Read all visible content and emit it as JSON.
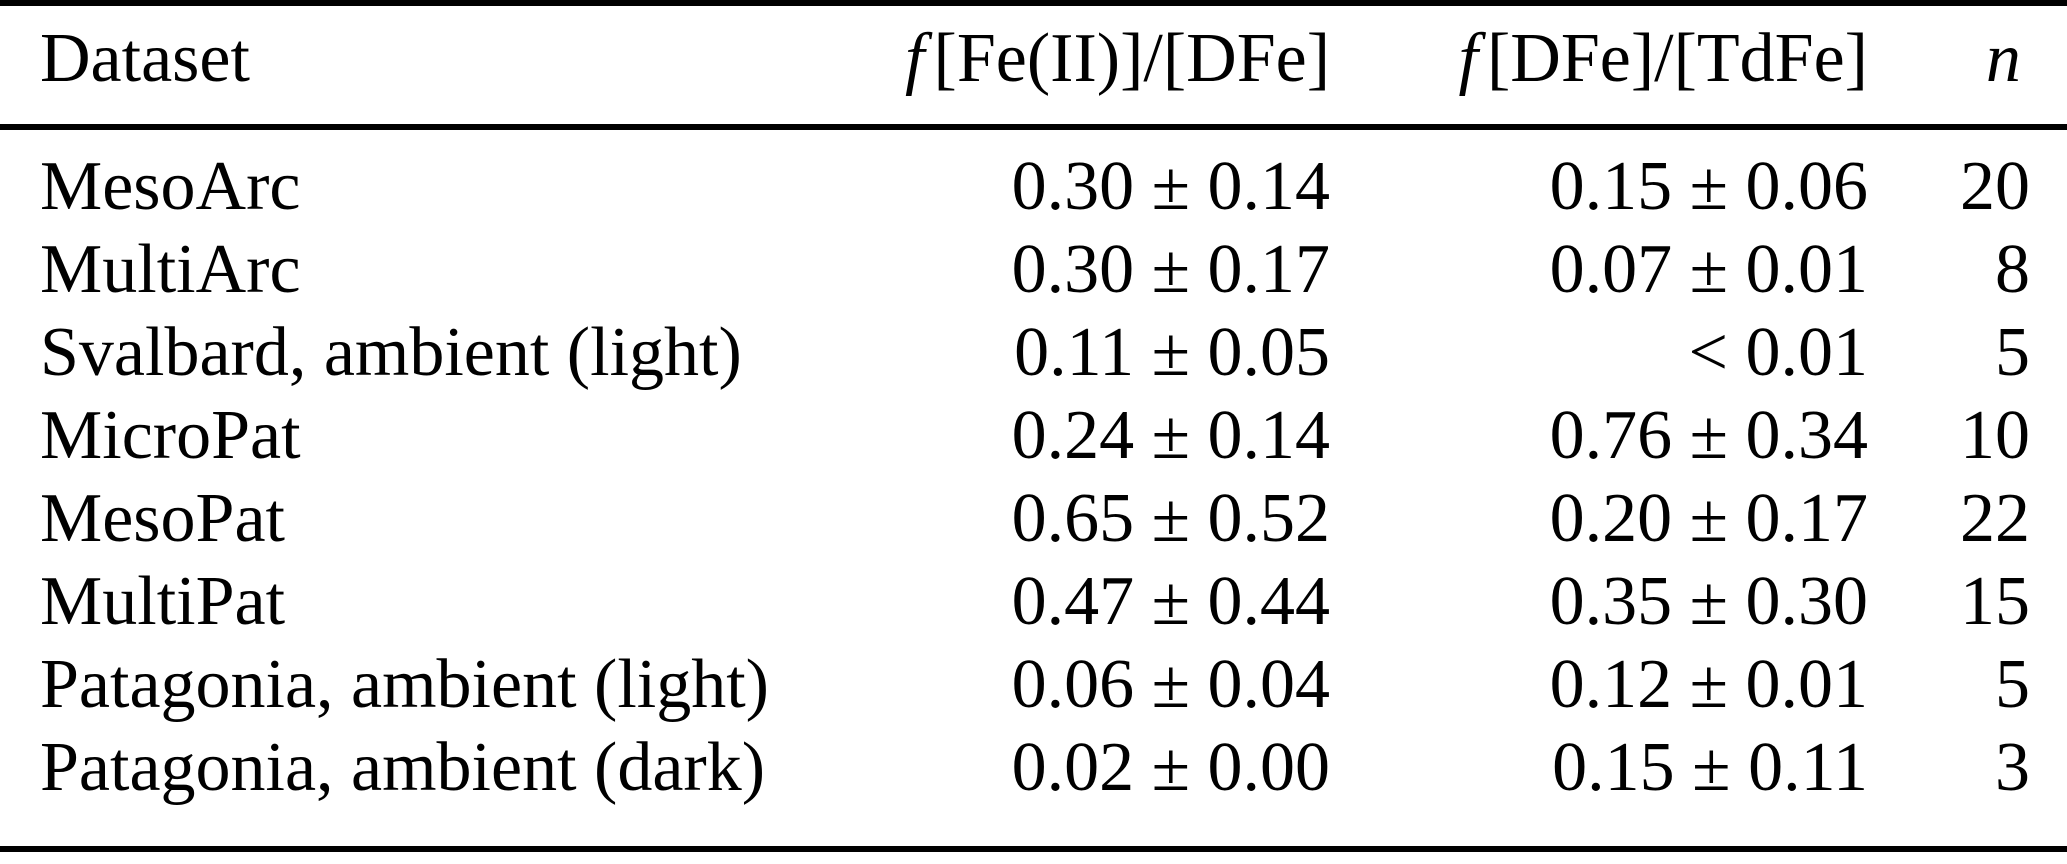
{
  "page": {
    "background_color": "#ffffff",
    "text_color": "#000000",
    "rule_color": "#000000"
  },
  "table": {
    "columns": {
      "dataset": {
        "prefix": "",
        "label": "Dataset"
      },
      "fe2_dfe": {
        "prefix": "f",
        "label": "[Fe(II)]/[DFe]"
      },
      "dfe_tdfe": {
        "prefix": "f",
        "label": "[DFe]/[TdFe]"
      },
      "n": {
        "prefix": "n",
        "label": ""
      }
    },
    "rows": [
      {
        "dataset": "MesoArc",
        "fe2_dfe": "0.30 ± 0.14",
        "dfe_tdfe": "0.15 ± 0.06",
        "n": "20"
      },
      {
        "dataset": "MultiArc",
        "fe2_dfe": "0.30 ± 0.17",
        "dfe_tdfe": "0.07 ± 0.01",
        "n": "8"
      },
      {
        "dataset": "Svalbard, ambient (light)",
        "fe2_dfe": "0.11 ± 0.05",
        "dfe_tdfe": "< 0.01",
        "n": "5"
      },
      {
        "dataset": "MicroPat",
        "fe2_dfe": "0.24 ± 0.14",
        "dfe_tdfe": "0.76 ± 0.34",
        "n": "10"
      },
      {
        "dataset": "MesoPat",
        "fe2_dfe": "0.65 ± 0.52",
        "dfe_tdfe": "0.20 ± 0.17",
        "n": "22"
      },
      {
        "dataset": "MultiPat",
        "fe2_dfe": "0.47 ± 0.44",
        "dfe_tdfe": "0.35 ± 0.30",
        "n": "15"
      },
      {
        "dataset": "Patagonia, ambient (light)",
        "fe2_dfe": "0.06 ± 0.04",
        "dfe_tdfe": "0.12 ± 0.01",
        "n": "5"
      },
      {
        "dataset": "Patagonia, ambient (dark)",
        "fe2_dfe": "0.02 ± 0.00",
        "dfe_tdfe": "0.15 ± 0.11",
        "n": "3"
      }
    ]
  }
}
